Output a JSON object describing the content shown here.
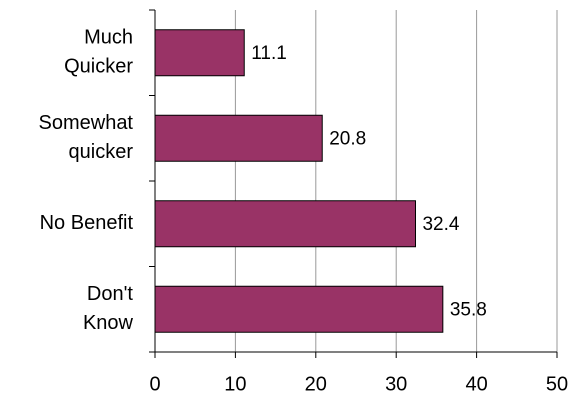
{
  "chart_data": {
    "type": "hbar",
    "categories": [
      "Much\nQuicker",
      "Somewhat\nquicker",
      "No Benefit",
      "Don't\nKnow"
    ],
    "values": [
      11.1,
      20.8,
      32.4,
      35.8
    ],
    "color": "#993366",
    "xlim": [
      0,
      50
    ],
    "xticks": [
      0,
      10,
      20,
      30,
      40,
      50
    ],
    "grid": true
  }
}
